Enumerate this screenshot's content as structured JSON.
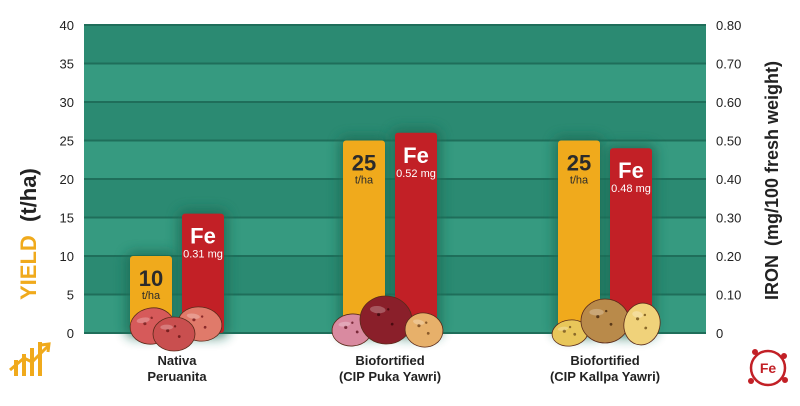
{
  "chart_data": {
    "type": "bar",
    "categories": [
      [
        "Nativa",
        "Peruanita"
      ],
      [
        "Biofortified",
        "(CIP Puka Yawri)"
      ],
      [
        "Biofortified",
        "(CIP Kallpa Yawri)"
      ]
    ],
    "series": [
      {
        "axis": "left",
        "values": [
          10,
          25,
          25
        ],
        "label_value": [
          "10",
          "25",
          "25"
        ],
        "label_unit": "t/ha"
      },
      {
        "axis": "right",
        "values": [
          0.31,
          0.52,
          0.48
        ],
        "label_value": [
          "Fe",
          "Fe",
          "Fe"
        ],
        "label_unit": [
          "0.31 mg",
          "0.52 mg",
          "0.48 mg"
        ]
      }
    ],
    "left_axis": {
      "ylim": [
        0,
        40
      ],
      "ticks": [
        "0",
        "5",
        "10",
        "15",
        "20",
        "25",
        "30",
        "35",
        "40"
      ],
      "label_main": "YIELD",
      "label_unit": "(t/ha)"
    },
    "right_axis": {
      "ylim": [
        0,
        0.8
      ],
      "ticks": [
        "0",
        "0.10",
        "0.20",
        "0.30",
        "0.40",
        "0.50",
        "0.60",
        "0.70",
        "0.80"
      ],
      "label_main": "IRON",
      "label_unit": "(mg/100 fresh weight)"
    },
    "grid": true,
    "colors": {
      "plot_bg": "#2b8a72",
      "plot_bg_light": "#369a80",
      "yield": "#f0aa1c",
      "iron": "#c22026",
      "glow": "#1e6e59",
      "yield_label": "#ffd84a"
    }
  },
  "icons": {
    "yield": "yield-growth-icon",
    "iron": "iron-fe-icon",
    "potatoes": "potato-illustration"
  },
  "iron_icon_text": "Fe"
}
